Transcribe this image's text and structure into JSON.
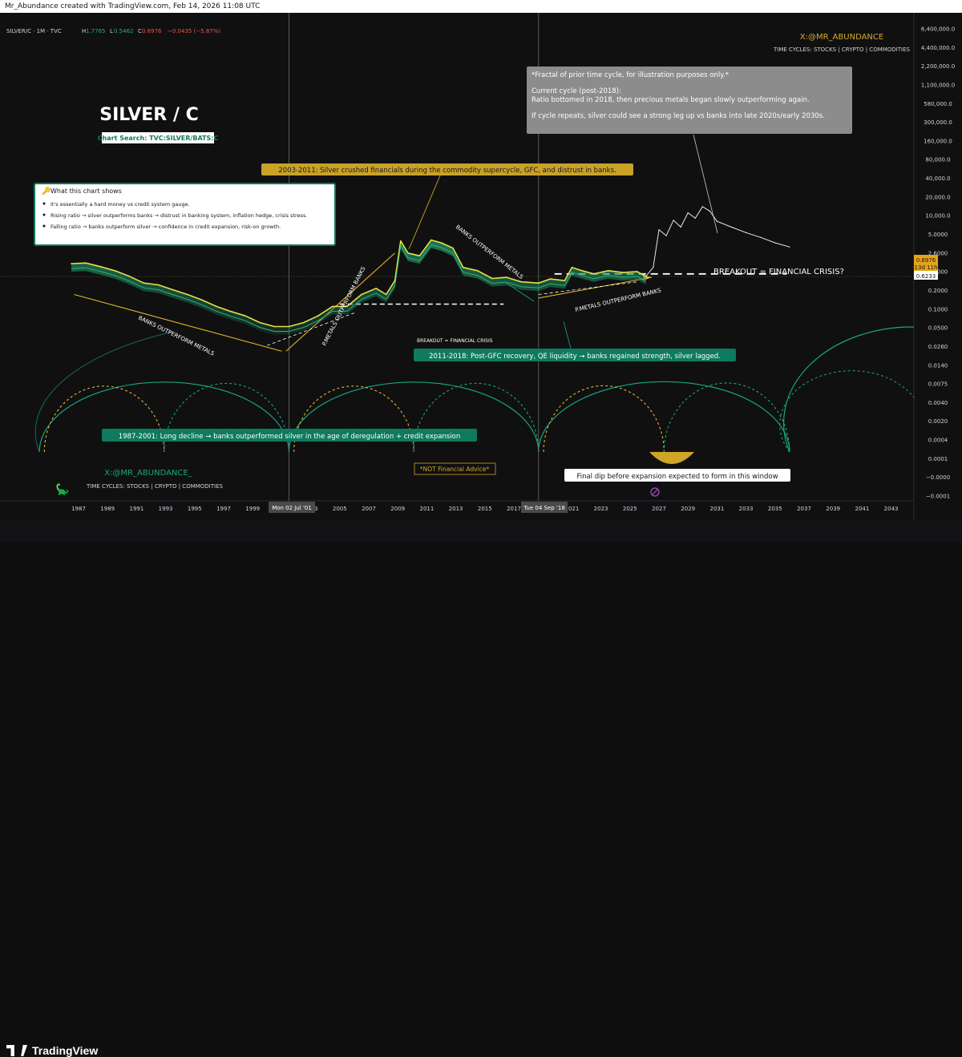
{
  "header": {
    "attribution": "Mr_Abundance created with TradingView.com, Feb 14, 2026 11:08 UTC",
    "symbol": "SILVER/C · 1M · TVC",
    "ohlc": [
      {
        "key": "H",
        "value": "1.7765"
      },
      {
        "key": "L",
        "value": "0.5462"
      },
      {
        "key": "C",
        "value": "0.6976"
      }
    ],
    "change": "−0.0435 (−5.87%)"
  },
  "colors": {
    "background": "#101011",
    "price_line": "#e6e04a",
    "price_fill": "#1f8a5e",
    "projection": "#e8e8e8",
    "arc": "#1aa67e",
    "arc_dashed": "#e8b52a",
    "teal_box": "#0e7a5e",
    "gold_box": "#c9a227",
    "gray_box": "#8a8a8a",
    "current_price_bg": "#e6a417",
    "breakout_price_bg": "#ffffff"
  },
  "title": "SILVER / C",
  "chart_search": "Chart Search: TVC:SILVER/BATS:C",
  "watermark_top": {
    "handle": "X:@MR_ABUNDANCE",
    "tagline": "TIME CYCLES: STOCKS | CRYPTO | COMMODITIES"
  },
  "watermark_bottom": {
    "handle": "X:@MR_ABUNDANCE_",
    "tagline": "TIME CYCLES: STOCKS | CRYPTO | COMMODITIES"
  },
  "info_box": {
    "heading": "What this chart shows",
    "icon": "key-icon",
    "bullets": [
      "It's essentially a hard money vs credit system gauge.",
      "Rising ratio → silver outperforms banks → distrust in banking system, inflation hedge, crisis stress.",
      "Falling ratio → banks outperform silver → confidence in credit expansion, risk-on growth."
    ]
  },
  "annotations": {
    "note_fractal": [
      "*Fractal of prior time cycle, for illustration purposes only.*",
      "",
      "Current cycle (post-2018):",
      "Ratio bottomed in 2018, then precious metals began slowly outperforming again.",
      "",
      "If cycle repeats, silver could see a strong leg up vs banks into late 2020s/early 2030s."
    ],
    "box_2003": "2003-2011: Silver crushed financials during the commodity supercycle, GFC, and distrust in banks.",
    "box_2011": "2011-2018: Post-GFC recovery, QE liquidity → banks regained strength, silver lagged.",
    "box_1987": "1987-2001: Long decline → banks outperformed silver in the age of deregulation + credit expansion",
    "final_dip": "Final dip before expansion expected to form in this window",
    "not_advice": "*NOT Financial Advice*",
    "banks_outperform_1": "BANKS OUTPERFORM METALS",
    "pmetals_outperform_1": "P.METALS OUTPERFORM BANKS",
    "banks_outperform_2": "BANKS OUTPERFORM METALS",
    "pmetals_outperform_2": "P.METALS OUTPERFORM BANKS",
    "breakout_small": "BREAKOUT = FINANCIAL CRISIS",
    "breakout_large": "BREAKOUT = FINANCIAL CRISIS?"
  },
  "price_labels": {
    "current_value": "0.6976",
    "current_countdown": "13d 11h",
    "breakout_level": "0.6233"
  },
  "crosshair_labels": {
    "first": "Mon 02 Jul '01",
    "second": "Tue 04 Sep '18"
  },
  "chart_data": {
    "type": "line",
    "y_scale": "log",
    "y_ticks": [
      "6,400,000.0",
      "4,400,000.0",
      "2,200,000.0",
      "1,100,000.0",
      "580,000.0",
      "300,000.0",
      "160,000.0",
      "80,000.0",
      "40,000.0",
      "20,000.0",
      "10,000.0",
      "5.0000",
      "2.6000",
      "1.4000",
      "0.2000",
      "0.1000",
      "0.0500",
      "0.0260",
      "0.0140",
      "0.0075",
      "0.0040",
      "0.0020",
      "0.0004",
      "0.0001",
      "−0.0000",
      "−0.0001"
    ],
    "x_ticks": [
      "1987",
      "1989",
      "1991",
      "1993",
      "1995",
      "1997",
      "1999",
      "2001",
      "2003",
      "2005",
      "2007",
      "2009",
      "2011",
      "2013",
      "2015",
      "2017",
      "2019",
      "2021",
      "2023",
      "2025",
      "2027",
      "2029",
      "2031",
      "2033",
      "2035",
      "2037",
      "2039",
      "2041",
      "2043"
    ],
    "series": [
      {
        "values": [
          [
            1986.5,
            1.0
          ],
          [
            1987.5,
            1.02
          ],
          [
            1988.5,
            0.92
          ],
          [
            1989.5,
            0.82
          ],
          [
            1990.5,
            0.7
          ],
          [
            1991.5,
            0.58
          ],
          [
            1992.5,
            0.55
          ],
          [
            1993.5,
            0.48
          ],
          [
            1994.5,
            0.42
          ],
          [
            1995.5,
            0.36
          ],
          [
            1996.5,
            0.3
          ],
          [
            1997.5,
            0.26
          ],
          [
            1998.5,
            0.23
          ],
          [
            1999.5,
            0.19
          ],
          [
            2000.5,
            0.17
          ],
          [
            2001.5,
            0.17
          ],
          [
            2002.5,
            0.19
          ],
          [
            2003.5,
            0.23
          ],
          [
            2004.5,
            0.3
          ],
          [
            2005.5,
            0.3
          ],
          [
            2006.5,
            0.42
          ],
          [
            2007.5,
            0.5
          ],
          [
            2008.2,
            0.42
          ],
          [
            2008.8,
            0.62
          ],
          [
            2009.2,
            1.9
          ],
          [
            2009.7,
            1.35
          ],
          [
            2010.5,
            1.25
          ],
          [
            2011.3,
            1.95
          ],
          [
            2012.0,
            1.8
          ],
          [
            2012.8,
            1.55
          ],
          [
            2013.5,
            0.9
          ],
          [
            2014.5,
            0.82
          ],
          [
            2015.5,
            0.66
          ],
          [
            2016.5,
            0.68
          ],
          [
            2017.5,
            0.6
          ],
          [
            2018.7,
            0.58
          ],
          [
            2019.5,
            0.65
          ],
          [
            2020.5,
            0.62
          ],
          [
            2021.0,
            0.9
          ],
          [
            2021.7,
            0.82
          ],
          [
            2022.5,
            0.75
          ],
          [
            2023.5,
            0.82
          ],
          [
            2024.5,
            0.78
          ],
          [
            2025.5,
            0.8
          ],
          [
            2026.1,
            0.6976
          ]
        ]
      },
      {
        "values": [
          [
            2026.1,
            0.7
          ],
          [
            2026.6,
            0.9
          ],
          [
            2027.0,
            2.6
          ],
          [
            2027.5,
            2.2
          ],
          [
            2028.0,
            3.4
          ],
          [
            2028.5,
            2.8
          ],
          [
            2029.0,
            4.2
          ],
          [
            2029.5,
            3.6
          ],
          [
            2030.0,
            5.0
          ],
          [
            2030.5,
            4.4
          ],
          [
            2031.0,
            3.3
          ],
          [
            2032.0,
            2.8
          ],
          [
            2033.0,
            2.4
          ],
          [
            2034.0,
            2.1
          ],
          [
            2035.0,
            1.8
          ],
          [
            2036.0,
            1.6
          ]
        ]
      }
    ],
    "cycle_lows": [
      1984.3,
      2001.5,
      2018.7,
      2036.0
    ]
  }
}
